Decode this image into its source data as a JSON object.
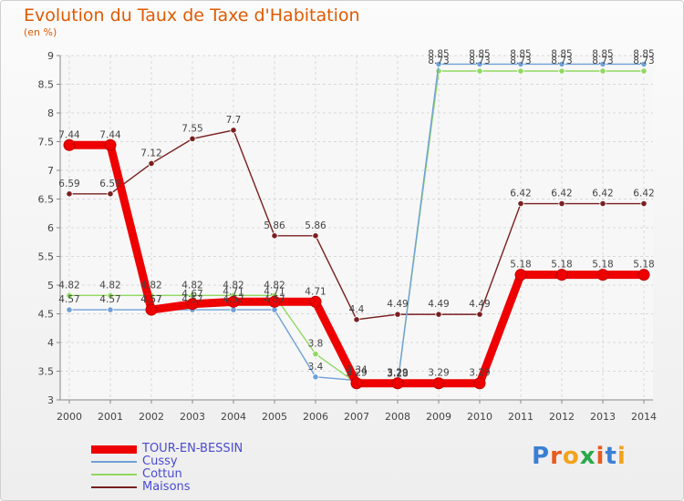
{
  "title": "Evolution du Taux de Taxe d'Habitation",
  "subtitle": "(en %)",
  "logo": {
    "letters": [
      "P",
      "r",
      "o",
      "x",
      "i",
      "t",
      "i"
    ],
    "colors": [
      "#3b7fd4",
      "#e85a1e",
      "#f2a31c",
      "#2aa84a",
      "#e85a1e",
      "#3b7fd4",
      "#f2a31c"
    ]
  },
  "chart_data": {
    "type": "line",
    "title": "Evolution du Taux de Taxe d'Habitation",
    "ylabel": "(en %)",
    "x": [
      "2000",
      "2001",
      "2002",
      "2003",
      "2004",
      "2005",
      "2006",
      "2007",
      "2008",
      "2009",
      "2010",
      "2011",
      "2012",
      "2013",
      "2014"
    ],
    "ylim": [
      3,
      9
    ],
    "yticks": [
      "3",
      "3.5",
      "4",
      "4.5",
      "5",
      "5.5",
      "6",
      "6.5",
      "7",
      "7.5",
      "8",
      "8.5",
      "9"
    ],
    "series": [
      {
        "name": "TOUR-EN-BESSIN",
        "color": "#ee0000",
        "values": [
          7.44,
          7.44,
          4.57,
          4.67,
          4.71,
          4.71,
          4.71,
          3.29,
          3.29,
          3.29,
          3.29,
          5.18,
          5.18,
          5.18,
          5.18
        ],
        "labels": [
          "7.44",
          "7.44",
          "4.57",
          "4.67",
          "4.71",
          "4.71",
          "4.71",
          "3.29",
          "3.29",
          "3.29",
          "3.29",
          "5.18",
          "5.18",
          "5.18",
          "5.18"
        ]
      },
      {
        "name": "Cussy",
        "color": "#6fa0d8",
        "values": [
          4.57,
          4.57,
          4.57,
          4.57,
          4.57,
          4.57,
          3.4,
          3.34,
          3.28,
          8.85,
          8.85,
          8.85,
          8.85,
          8.85,
          8.85
        ],
        "labels": [
          "4.57",
          "4.57",
          "4.57",
          "4.57",
          "4.57",
          "4.57",
          "3.4",
          "3.34",
          "3.28",
          "8.85",
          "8.85",
          "8.85",
          "8.85",
          "8.85",
          "8.85"
        ]
      },
      {
        "name": "Cottun",
        "color": "#90d860",
        "values": [
          4.82,
          4.82,
          4.82,
          4.82,
          4.82,
          4.82,
          3.8,
          3.29,
          3.29,
          8.73,
          8.73,
          8.73,
          8.73,
          8.73,
          8.73
        ],
        "labels": [
          "4.82",
          "4.82",
          "4.82",
          "4.82",
          "4.82",
          "4.82",
          "3.8",
          "3.29",
          "3.29",
          "8.73",
          "8.73",
          "8.73",
          "8.73",
          "8.73",
          "8.73"
        ]
      },
      {
        "name": "Maisons",
        "color": "#7a1f1f",
        "values": [
          6.59,
          6.59,
          7.12,
          7.55,
          7.7,
          5.86,
          5.86,
          4.4,
          4.49,
          4.49,
          4.49,
          6.42,
          6.42,
          6.42,
          6.42
        ],
        "labels": [
          "6.59",
          "6.59",
          "7.12",
          "7.55",
          "7.7",
          "5.86",
          "5.86",
          "4.4",
          "4.49",
          "4.49",
          "4.49",
          "6.42",
          "6.42",
          "6.42",
          "6.42"
        ]
      }
    ],
    "legend": "bottom-left",
    "grid": true
  }
}
